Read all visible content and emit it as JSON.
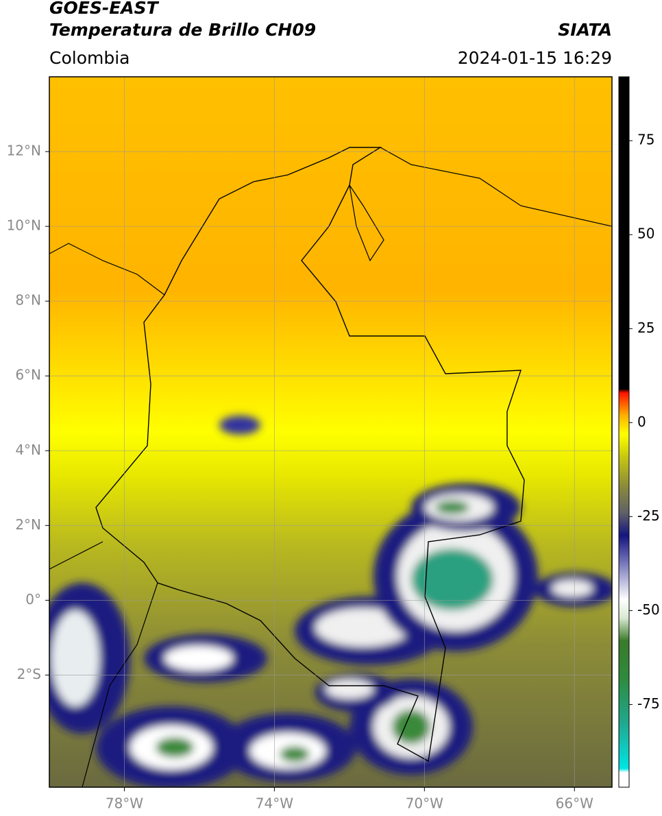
{
  "header": {
    "title": "GOES-EAST",
    "subtitle": "Temperatura de Brillo CH09",
    "source": "SIATA",
    "region": "Colombia",
    "datetime": "2024-01-15 16:29"
  },
  "map": {
    "xlim": [
      -80,
      -65
    ],
    "ylim": [
      -5,
      14
    ],
    "grid": true,
    "xticks": [
      {
        "value": -78,
        "label": "78°W"
      },
      {
        "value": -74,
        "label": "74°W"
      },
      {
        "value": -70,
        "label": "70°W"
      },
      {
        "value": -66,
        "label": "66°W"
      }
    ],
    "yticks": [
      {
        "value": 12,
        "label": "12°N"
      },
      {
        "value": 10,
        "label": "10°N"
      },
      {
        "value": 8,
        "label": "8°N"
      },
      {
        "value": 6,
        "label": "6°N"
      },
      {
        "value": 4,
        "label": "4°N"
      },
      {
        "value": 2,
        "label": "2°N"
      },
      {
        "value": 0,
        "label": "0°"
      },
      {
        "value": -2,
        "label": "2°S"
      }
    ]
  },
  "colorbar": {
    "lim": [
      -97,
      92
    ],
    "ticks": [
      75,
      50,
      25,
      0,
      -25,
      -50,
      -75
    ],
    "stops": [
      {
        "value": -97,
        "color": "#ffffff"
      },
      {
        "value": -93,
        "color": "#ffffff"
      },
      {
        "value": -92,
        "color": "#00e5e5"
      },
      {
        "value": -80,
        "color": "#20a890"
      },
      {
        "value": -68,
        "color": "#2e8b3e"
      },
      {
        "value": -58,
        "color": "#3a7a2a"
      },
      {
        "value": -52,
        "color": "#d8e8d0"
      },
      {
        "value": -47,
        "color": "#ffffff"
      },
      {
        "value": -38,
        "color": "#8080c0"
      },
      {
        "value": -30,
        "color": "#141480"
      },
      {
        "value": -24,
        "color": "#606068"
      },
      {
        "value": -17,
        "color": "#8a8a3a"
      },
      {
        "value": -9,
        "color": "#c8c810"
      },
      {
        "value": -3,
        "color": "#ffff00"
      },
      {
        "value": 2,
        "color": "#ffb000"
      },
      {
        "value": 8,
        "color": "#ff1000"
      },
      {
        "value": 9,
        "color": "#000000"
      },
      {
        "value": 92,
        "color": "#000000"
      }
    ]
  }
}
